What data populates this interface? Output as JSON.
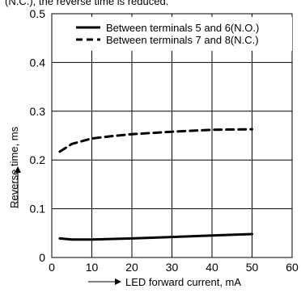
{
  "chart_data": {
    "type": "line",
    "title": "",
    "top_partial_text": "(N.C.), the reverse time is reduced.",
    "xlabel": "LED forward current, mA",
    "ylabel": "Reverse time, ms",
    "xlim": [
      0,
      60
    ],
    "ylim": [
      0,
      0.5
    ],
    "xticks": [
      "0",
      "10",
      "20",
      "30",
      "40",
      "50",
      "60"
    ],
    "yticks": [
      "0",
      "0.1",
      "0.2",
      "0.3",
      "0.4",
      "0.5"
    ],
    "grid": true,
    "legend_position": "top-right",
    "series": [
      {
        "name": "Between terminals 5 and 6(N.O.)",
        "style": "solid",
        "x": [
          2,
          5,
          10,
          20,
          30,
          40,
          50
        ],
        "y": [
          0.039,
          0.037,
          0.037,
          0.039,
          0.042,
          0.045,
          0.048
        ]
      },
      {
        "name": "Between terminals 7 and 8(N.C.)",
        "style": "dashed",
        "x": [
          2,
          5,
          10,
          15,
          20,
          30,
          40,
          50
        ],
        "y": [
          0.217,
          0.233,
          0.244,
          0.249,
          0.253,
          0.258,
          0.262,
          0.263
        ]
      }
    ]
  },
  "colors": {
    "line": "#000000",
    "grid": "#000000",
    "background": "#ffffff"
  }
}
